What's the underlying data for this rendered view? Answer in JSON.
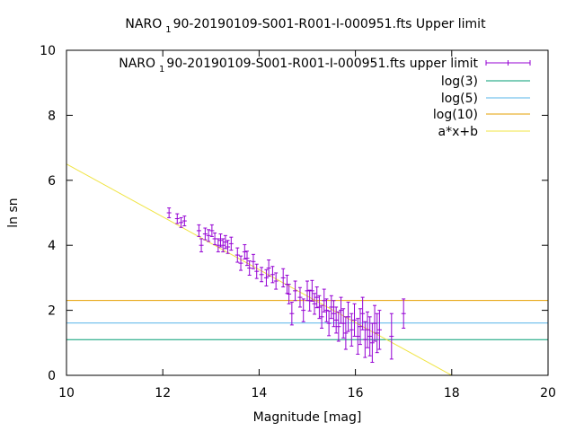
{
  "chart_data": {
    "type": "scatter",
    "title": {
      "prefix": "NARO",
      "subscript": "1",
      "suffix": "90-20190109-S001-R001-I-000951.fts Upper limit"
    },
    "xlabel": "Magnitude [mag]",
    "ylabel": "ln sn",
    "xlim": [
      10,
      20
    ],
    "ylim": [
      0,
      10
    ],
    "xticks": [
      10,
      12,
      14,
      16,
      18,
      20
    ],
    "yticks": [
      0,
      2,
      4,
      6,
      8,
      10
    ],
    "grid": false,
    "legend_position": "top-right",
    "colors": {
      "points": "#9400d3",
      "log3": "#009e73",
      "log5": "#56b4e9",
      "log10": "#e69f00",
      "fit": "#f0e442"
    },
    "series": [
      {
        "name": {
          "prefix": "NARO",
          "subscript": "1",
          "suffix": "90-20190109-S001-R001-I-000951.fts upper limit"
        },
        "kind": "errorbars",
        "points": [
          [
            12.13,
            5.0,
            0.15
          ],
          [
            12.3,
            4.82,
            0.15
          ],
          [
            12.38,
            4.7,
            0.15
          ],
          [
            12.45,
            4.75,
            0.15
          ],
          [
            12.75,
            4.45,
            0.18
          ],
          [
            12.8,
            4.0,
            0.2
          ],
          [
            12.88,
            4.35,
            0.18
          ],
          [
            12.95,
            4.3,
            0.18
          ],
          [
            13.02,
            4.45,
            0.18
          ],
          [
            13.08,
            4.2,
            0.18
          ],
          [
            13.15,
            4.0,
            0.2
          ],
          [
            13.2,
            4.15,
            0.2
          ],
          [
            13.25,
            4.0,
            0.2
          ],
          [
            13.3,
            4.1,
            0.2
          ],
          [
            13.35,
            3.95,
            0.2
          ],
          [
            13.42,
            4.05,
            0.2
          ],
          [
            13.55,
            3.7,
            0.22
          ],
          [
            13.62,
            3.45,
            0.22
          ],
          [
            13.7,
            3.8,
            0.22
          ],
          [
            13.75,
            3.6,
            0.22
          ],
          [
            13.8,
            3.3,
            0.22
          ],
          [
            13.88,
            3.5,
            0.22
          ],
          [
            13.95,
            3.2,
            0.22
          ],
          [
            14.05,
            3.1,
            0.22
          ],
          [
            14.15,
            3.0,
            0.25
          ],
          [
            14.2,
            3.3,
            0.25
          ],
          [
            14.28,
            3.1,
            0.25
          ],
          [
            14.35,
            2.9,
            0.25
          ],
          [
            14.5,
            3.0,
            0.28
          ],
          [
            14.58,
            2.8,
            0.28
          ],
          [
            14.62,
            2.5,
            0.3
          ],
          [
            14.68,
            1.9,
            0.35
          ],
          [
            14.75,
            2.6,
            0.3
          ],
          [
            14.85,
            2.4,
            0.3
          ],
          [
            14.92,
            2.0,
            0.35
          ],
          [
            15.0,
            2.6,
            0.3
          ],
          [
            15.05,
            2.3,
            0.32
          ],
          [
            15.1,
            2.6,
            0.32
          ],
          [
            15.15,
            2.2,
            0.32
          ],
          [
            15.2,
            2.4,
            0.32
          ],
          [
            15.25,
            2.1,
            0.35
          ],
          [
            15.3,
            1.8,
            0.35
          ],
          [
            15.35,
            2.3,
            0.35
          ],
          [
            15.4,
            2.0,
            0.35
          ],
          [
            15.45,
            1.6,
            0.38
          ],
          [
            15.5,
            2.1,
            0.35
          ],
          [
            15.55,
            1.9,
            0.4
          ],
          [
            15.6,
            1.7,
            0.4
          ],
          [
            15.65,
            1.5,
            0.45
          ],
          [
            15.7,
            2.0,
            0.4
          ],
          [
            15.75,
            1.6,
            0.45
          ],
          [
            15.8,
            1.3,
            0.5
          ],
          [
            15.85,
            1.8,
            0.45
          ],
          [
            15.92,
            1.4,
            0.5
          ],
          [
            15.98,
            1.7,
            0.5
          ],
          [
            16.05,
            1.2,
            0.55
          ],
          [
            16.1,
            1.5,
            0.55
          ],
          [
            16.15,
            1.9,
            0.5
          ],
          [
            16.2,
            1.1,
            0.55
          ],
          [
            16.25,
            1.4,
            0.55
          ],
          [
            16.3,
            1.2,
            0.6
          ],
          [
            16.35,
            1.0,
            0.6
          ],
          [
            16.4,
            1.6,
            0.55
          ],
          [
            16.45,
            1.3,
            0.6
          ],
          [
            16.5,
            1.4,
            0.6
          ],
          [
            16.75,
            1.2,
            0.7
          ],
          [
            17.0,
            1.9,
            0.45
          ]
        ]
      },
      {
        "name": "log(3)",
        "kind": "hline",
        "y": 1.0986
      },
      {
        "name": "log(5)",
        "kind": "hline",
        "y": 1.6094
      },
      {
        "name": "log(10)",
        "kind": "hline",
        "y": 2.3026
      },
      {
        "name": "a*x+b",
        "kind": "line",
        "slope": -0.8125,
        "intercept": 14.625
      }
    ]
  }
}
